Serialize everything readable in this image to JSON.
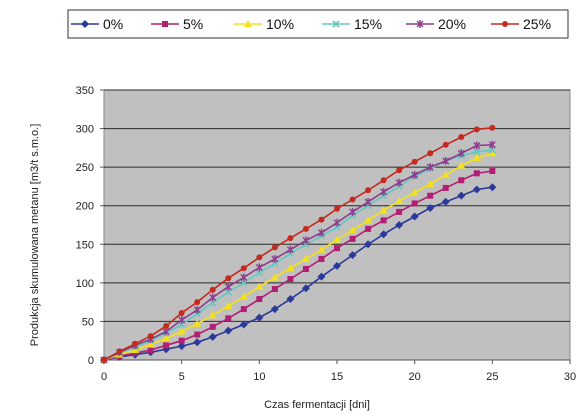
{
  "chart_data": {
    "type": "line",
    "title": "",
    "xlabel": "Czas fermentacji [dni]",
    "ylabel": "Produkcja skumulowana metanu [m3/t s.m.o.]",
    "xlim": [
      0,
      30
    ],
    "ylim": [
      0,
      350
    ],
    "xticks": [
      "0",
      "5",
      "10",
      "15",
      "20",
      "25",
      "30"
    ],
    "yticks": [
      "0",
      "50",
      "100",
      "150",
      "200",
      "250",
      "300",
      "350"
    ],
    "grid": true,
    "legend_position": "top",
    "plot_background": "#c0c0c0",
    "x": [
      0,
      1,
      2,
      3,
      4,
      5,
      6,
      7,
      8,
      9,
      10,
      11,
      12,
      13,
      14,
      15,
      16,
      17,
      18,
      19,
      20,
      21,
      22,
      23,
      24,
      25
    ],
    "series": [
      {
        "name": "0%",
        "color": "#2b3a9a",
        "marker": "diamond",
        "values": [
          0,
          4,
          7,
          10,
          14,
          18,
          23,
          30,
          38,
          46,
          55,
          66,
          79,
          93,
          108,
          122,
          136,
          150,
          163,
          175,
          186,
          197,
          205,
          213,
          221,
          224
        ]
      },
      {
        "name": "5%",
        "color": "#b21e72",
        "marker": "square",
        "values": [
          0,
          5,
          9,
          13,
          19,
          25,
          33,
          43,
          54,
          66,
          79,
          92,
          105,
          118,
          131,
          145,
          157,
          170,
          181,
          192,
          203,
          213,
          223,
          233,
          242,
          245
        ]
      },
      {
        "name": "10%",
        "color": "#f3e21a",
        "marker": "triangle",
        "values": [
          0,
          7,
          13,
          20,
          28,
          37,
          47,
          58,
          70,
          82,
          95,
          107,
          119,
          131,
          143,
          156,
          168,
          181,
          194,
          206,
          217,
          228,
          240,
          252,
          262,
          268
        ]
      },
      {
        "name": "15%",
        "color": "#66c7c1",
        "marker": "x",
        "values": [
          0,
          9,
          17,
          25,
          35,
          46,
          60,
          74,
          88,
          100,
          113,
          125,
          138,
          150,
          161,
          172,
          187,
          200,
          213,
          225,
          238,
          248,
          258,
          265,
          270,
          272
        ]
      },
      {
        "name": "20%",
        "color": "#8e3c8c",
        "marker": "star",
        "values": [
          0,
          10,
          19,
          27,
          37,
          52,
          65,
          81,
          95,
          107,
          120,
          131,
          143,
          155,
          165,
          178,
          192,
          205,
          218,
          230,
          240,
          250,
          258,
          268,
          278,
          279
        ]
      },
      {
        "name": "25%",
        "color": "#c42a1e",
        "marker": "circle",
        "values": [
          0,
          11,
          21,
          31,
          44,
          61,
          75,
          91,
          106,
          119,
          133,
          146,
          158,
          170,
          182,
          196,
          208,
          220,
          233,
          246,
          257,
          268,
          279,
          289,
          299,
          301
        ]
      }
    ]
  }
}
